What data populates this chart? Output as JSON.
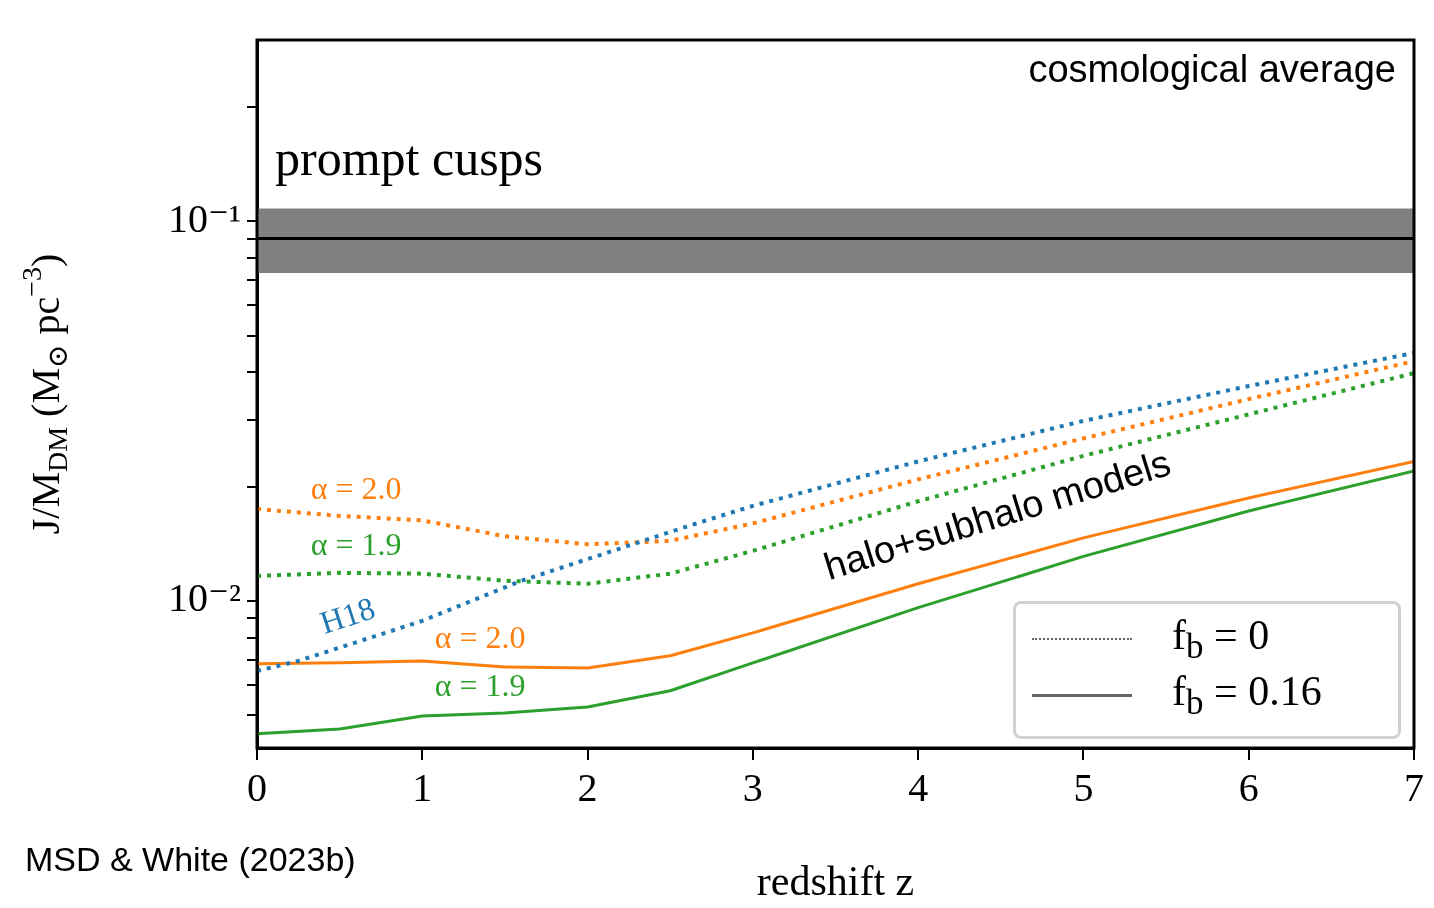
{
  "chart_data": {
    "type": "line",
    "xlabel": "redshift z",
    "ylabel": "J/M$_{DM}$ (M$_{⊙}$ pc$^{−3}$)",
    "log": "y",
    "grid": false,
    "marker": "none",
    "xlim": [
      0,
      7
    ],
    "xticks": [
      0,
      1,
      2,
      3,
      4,
      5,
      6,
      7
    ],
    "ylim": [
      0.0041,
      0.3
    ],
    "yticks": [
      {
        "value": 0.005,
        "label": null
      },
      {
        "value": 0.006,
        "label": null
      },
      {
        "value": 0.007,
        "label": null
      },
      {
        "value": 0.008,
        "label": null
      },
      {
        "value": 0.009,
        "label": null
      },
      {
        "value": 0.01,
        "label": "10⁻²"
      },
      {
        "value": 0.02,
        "label": null
      },
      {
        "value": 0.03,
        "label": null
      },
      {
        "value": 0.04,
        "label": null
      },
      {
        "value": 0.05,
        "label": null
      },
      {
        "value": 0.06,
        "label": null
      },
      {
        "value": 0.07,
        "label": null
      },
      {
        "value": 0.08,
        "label": null
      },
      {
        "value": 0.09,
        "label": null
      },
      {
        "value": 0.1,
        "label": "10⁻¹"
      },
      {
        "value": 0.2,
        "label": null
      }
    ],
    "x": [
      0,
      0.5,
      1,
      1.5,
      2,
      2.5,
      3,
      4,
      5,
      6,
      7
    ],
    "series": [
      {
        "name": "H18",
        "color": "#1f77b4",
        "line_style": "dotted",
        "x": [
          0,
          0.25,
          1,
          1.6,
          2.6,
          3,
          4,
          5,
          6,
          7
        ],
        "values": [
          0.00654,
          0.00695,
          0.00886,
          0.0113,
          0.0157,
          0.0178,
          0.0233,
          0.0298,
          0.0368,
          0.045
        ]
      },
      {
        "name": "α = 2.0",
        "color": "#ff7f0e",
        "line_style": "dotted",
        "values": [
          0.01746,
          0.01675,
          0.0163,
          0.0148,
          0.0141,
          0.0144,
          0.016,
          0.0209,
          0.0268,
          0.034,
          0.0428
        ]
      },
      {
        "name": "α = 1.9",
        "color": "#2ca02c",
        "line_style": "dotted",
        "values": [
          0.01164,
          0.01186,
          0.0118,
          0.0113,
          0.0111,
          0.0118,
          0.01355,
          0.0183,
          0.0241,
          0.031,
          0.0398
        ]
      },
      {
        "name": "α = 2.0",
        "color": "#ff7f0e",
        "line_style": "solid",
        "values": [
          0.00683,
          0.00687,
          0.00695,
          0.0067,
          0.00666,
          0.00717,
          0.00824,
          0.0111,
          0.01466,
          0.01867,
          0.0233
        ]
      },
      {
        "name": "α = 1.9",
        "color": "#2ca02c",
        "line_style": "solid",
        "values": [
          0.00447,
          0.0046,
          0.00498,
          0.00507,
          0.00526,
          0.0058,
          0.00687,
          0.0096,
          0.0131,
          0.01726,
          0.022
        ]
      }
    ],
    "bands": [
      {
        "axis": "y",
        "from": 0.073,
        "to": 0.108,
        "color": "#808080"
      }
    ],
    "ref_lines": [
      {
        "axis": "y",
        "value": 0.09,
        "color": "#000000"
      }
    ],
    "annotations": [
      "cosmological average",
      "prompt cusps",
      "halo+subhalo models",
      "f$_{b}$ = 0",
      "f$_{b}$ = 0.16",
      "MSD & White (2023b)"
    ]
  }
}
